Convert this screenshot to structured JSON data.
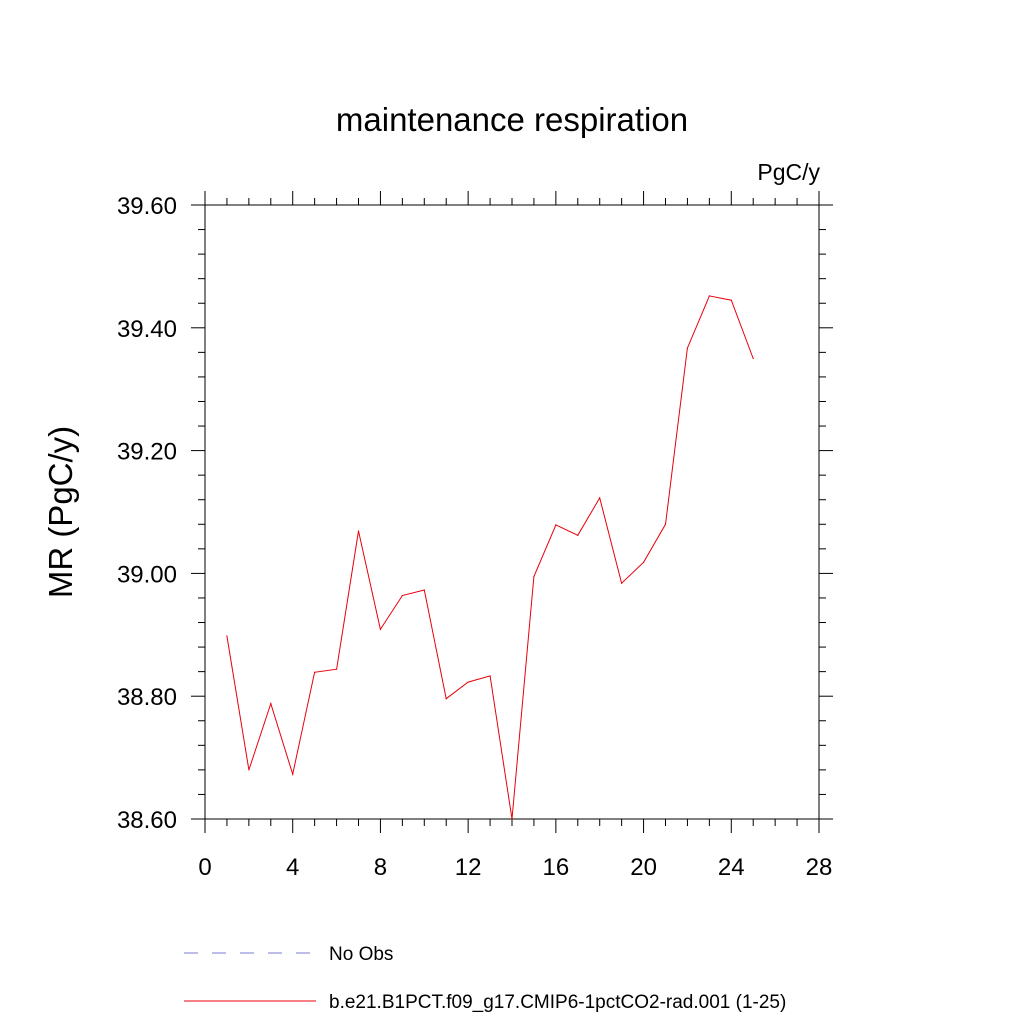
{
  "chart_data": {
    "type": "line",
    "title": "maintenance respiration",
    "units_label": "PgC/y",
    "ylabel": "MR  (PgC/y)",
    "xlabel": "",
    "xlim": [
      0,
      28
    ],
    "ylim": [
      38.6,
      39.6
    ],
    "x_ticks": [
      0,
      4,
      8,
      12,
      16,
      20,
      24,
      28
    ],
    "x_tick_labels": [
      "0",
      "4",
      "8",
      "12",
      "16",
      "20",
      "24",
      "28"
    ],
    "y_ticks": [
      38.6,
      38.8,
      39.0,
      39.2,
      39.4,
      39.6
    ],
    "y_tick_labels": [
      "38.60",
      "38.80",
      "39.00",
      "39.20",
      "39.40",
      "39.60"
    ],
    "grid": false,
    "legend_position": "bottom",
    "series": [
      {
        "name": "b.e21.B1PCT.f09_g17.CMIP6-1pctCO2-rad.001 (1-25)",
        "color": "#e8000b",
        "style": "solid",
        "x": [
          1,
          2,
          3,
          4,
          5,
          6,
          7,
          8,
          9,
          10,
          11,
          12,
          13,
          14,
          15,
          16,
          17,
          18,
          19,
          20,
          21,
          22,
          23,
          24,
          25
        ],
        "values": [
          38.898,
          38.68,
          38.788,
          38.673,
          38.839,
          38.844,
          39.069,
          38.909,
          38.964,
          38.973,
          38.796,
          38.823,
          38.833,
          38.6,
          38.995,
          39.079,
          39.062,
          39.123,
          38.984,
          39.018,
          39.08,
          39.367,
          39.452,
          39.445,
          39.35
        ]
      }
    ],
    "legend": [
      {
        "label": "No Obs",
        "color": "#7b7bd4",
        "style": "dashed"
      },
      {
        "label": "b.e21.B1PCT.f09_g17.CMIP6-1pctCO2-rad.001 (1-25)",
        "color": "#e8000b",
        "style": "solid"
      }
    ]
  }
}
